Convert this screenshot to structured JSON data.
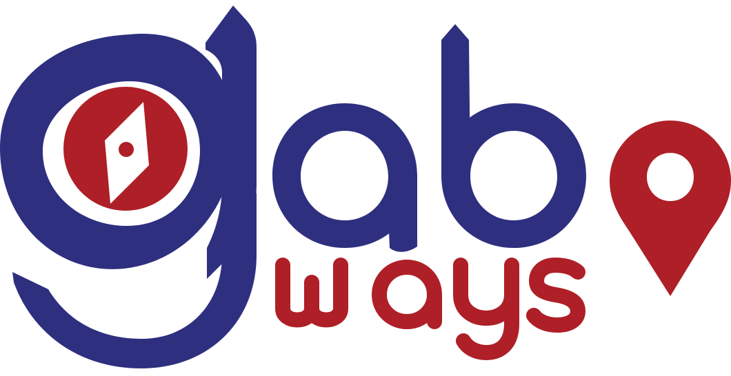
{
  "logo": {
    "wordmark_primary": "gab",
    "wordmark_secondary": "ways",
    "colors": {
      "primary_blue": "#2e2f7f",
      "accent_red": "#ae1f27",
      "background": "#ffffff"
    },
    "icons": [
      "compass-icon",
      "location-pin-icon"
    ]
  }
}
